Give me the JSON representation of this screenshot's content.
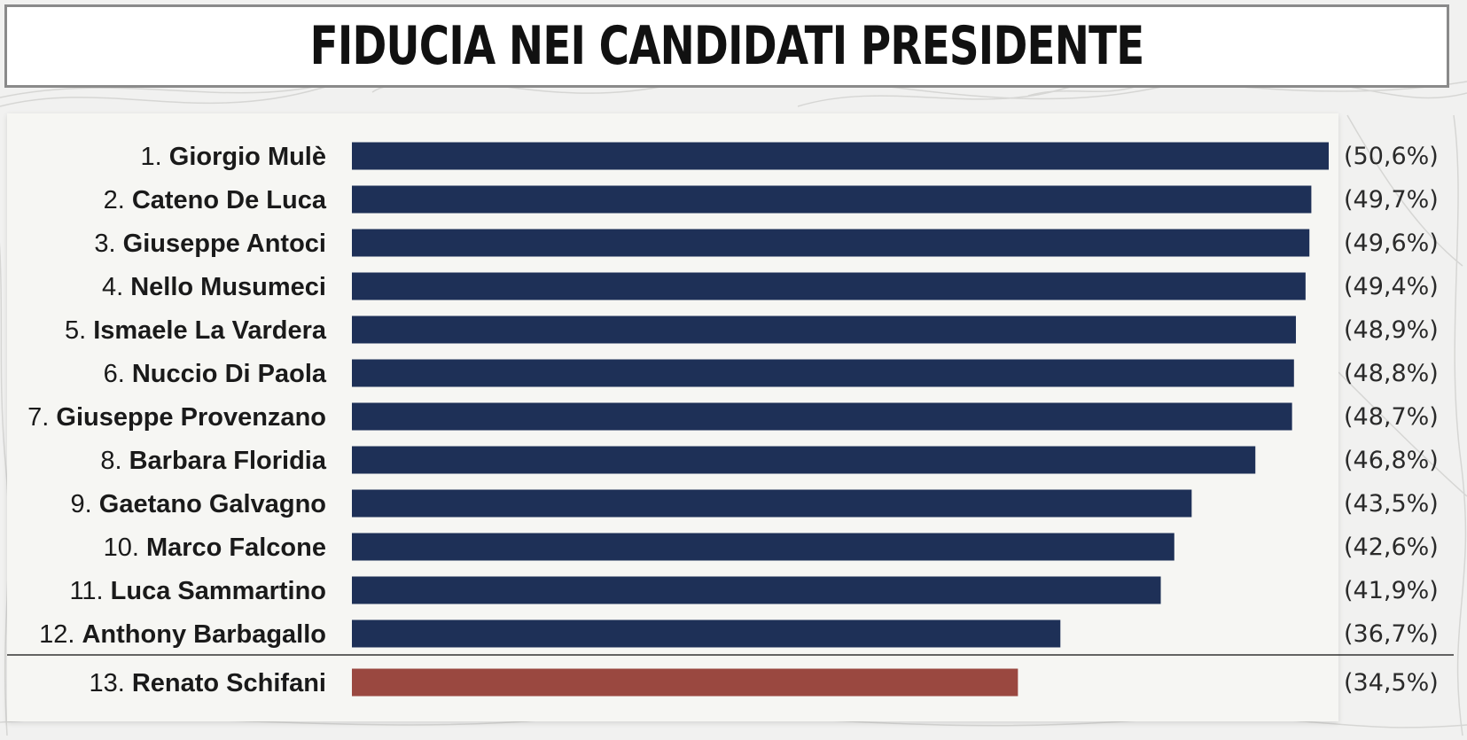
{
  "title": "FIDUCIA NEI CANDIDATI PRESIDENTE",
  "chart_data": {
    "type": "bar",
    "orientation": "horizontal",
    "title": "FIDUCIA NEI CANDIDATI PRESIDENTE",
    "xlim": [
      0,
      50.6
    ],
    "grid": false,
    "bars": [
      {
        "rank": "1.",
        "name": "Giorgio Mulè",
        "value": 50.6,
        "label": "(50,6%)",
        "color": "#1e3057"
      },
      {
        "rank": "2.",
        "name": "Cateno De Luca",
        "value": 49.7,
        "label": "(49,7%)",
        "color": "#1e3057"
      },
      {
        "rank": "3.",
        "name": "Giuseppe Antoci",
        "value": 49.6,
        "label": "(49,6%)",
        "color": "#1e3057"
      },
      {
        "rank": "4.",
        "name": "Nello Musumeci",
        "value": 49.4,
        "label": "(49,4%)",
        "color": "#1e3057"
      },
      {
        "rank": "5.",
        "name": "Ismaele La Vardera",
        "value": 48.9,
        "label": "(48,9%)",
        "color": "#1e3057"
      },
      {
        "rank": "6.",
        "name": "Nuccio Di Paola",
        "value": 48.8,
        "label": "(48,8%)",
        "color": "#1e3057"
      },
      {
        "rank": "7.",
        "name": "Giuseppe Provenzano",
        "value": 48.7,
        "label": "(48,7%)",
        "color": "#1e3057"
      },
      {
        "rank": "8.",
        "name": "Barbara Floridia",
        "value": 46.8,
        "label": "(46,8%)",
        "color": "#1e3057"
      },
      {
        "rank": "9.",
        "name": "Gaetano Galvagno",
        "value": 43.5,
        "label": "(43,5%)",
        "color": "#1e3057"
      },
      {
        "rank": "10.",
        "name": "Marco Falcone",
        "value": 42.6,
        "label": "(42,6%)",
        "color": "#1e3057"
      },
      {
        "rank": "11.",
        "name": "Luca Sammartino",
        "value": 41.9,
        "label": "(41,9%)",
        "color": "#1e3057"
      },
      {
        "rank": "12.",
        "name": "Anthony Barbagallo",
        "value": 36.7,
        "label": "(36,7%)",
        "color": "#1e3057"
      },
      {
        "rank": "13.",
        "name": "Renato Schifani",
        "value": 34.5,
        "label": "(34,5%)",
        "color": "#9a4840"
      }
    ]
  }
}
